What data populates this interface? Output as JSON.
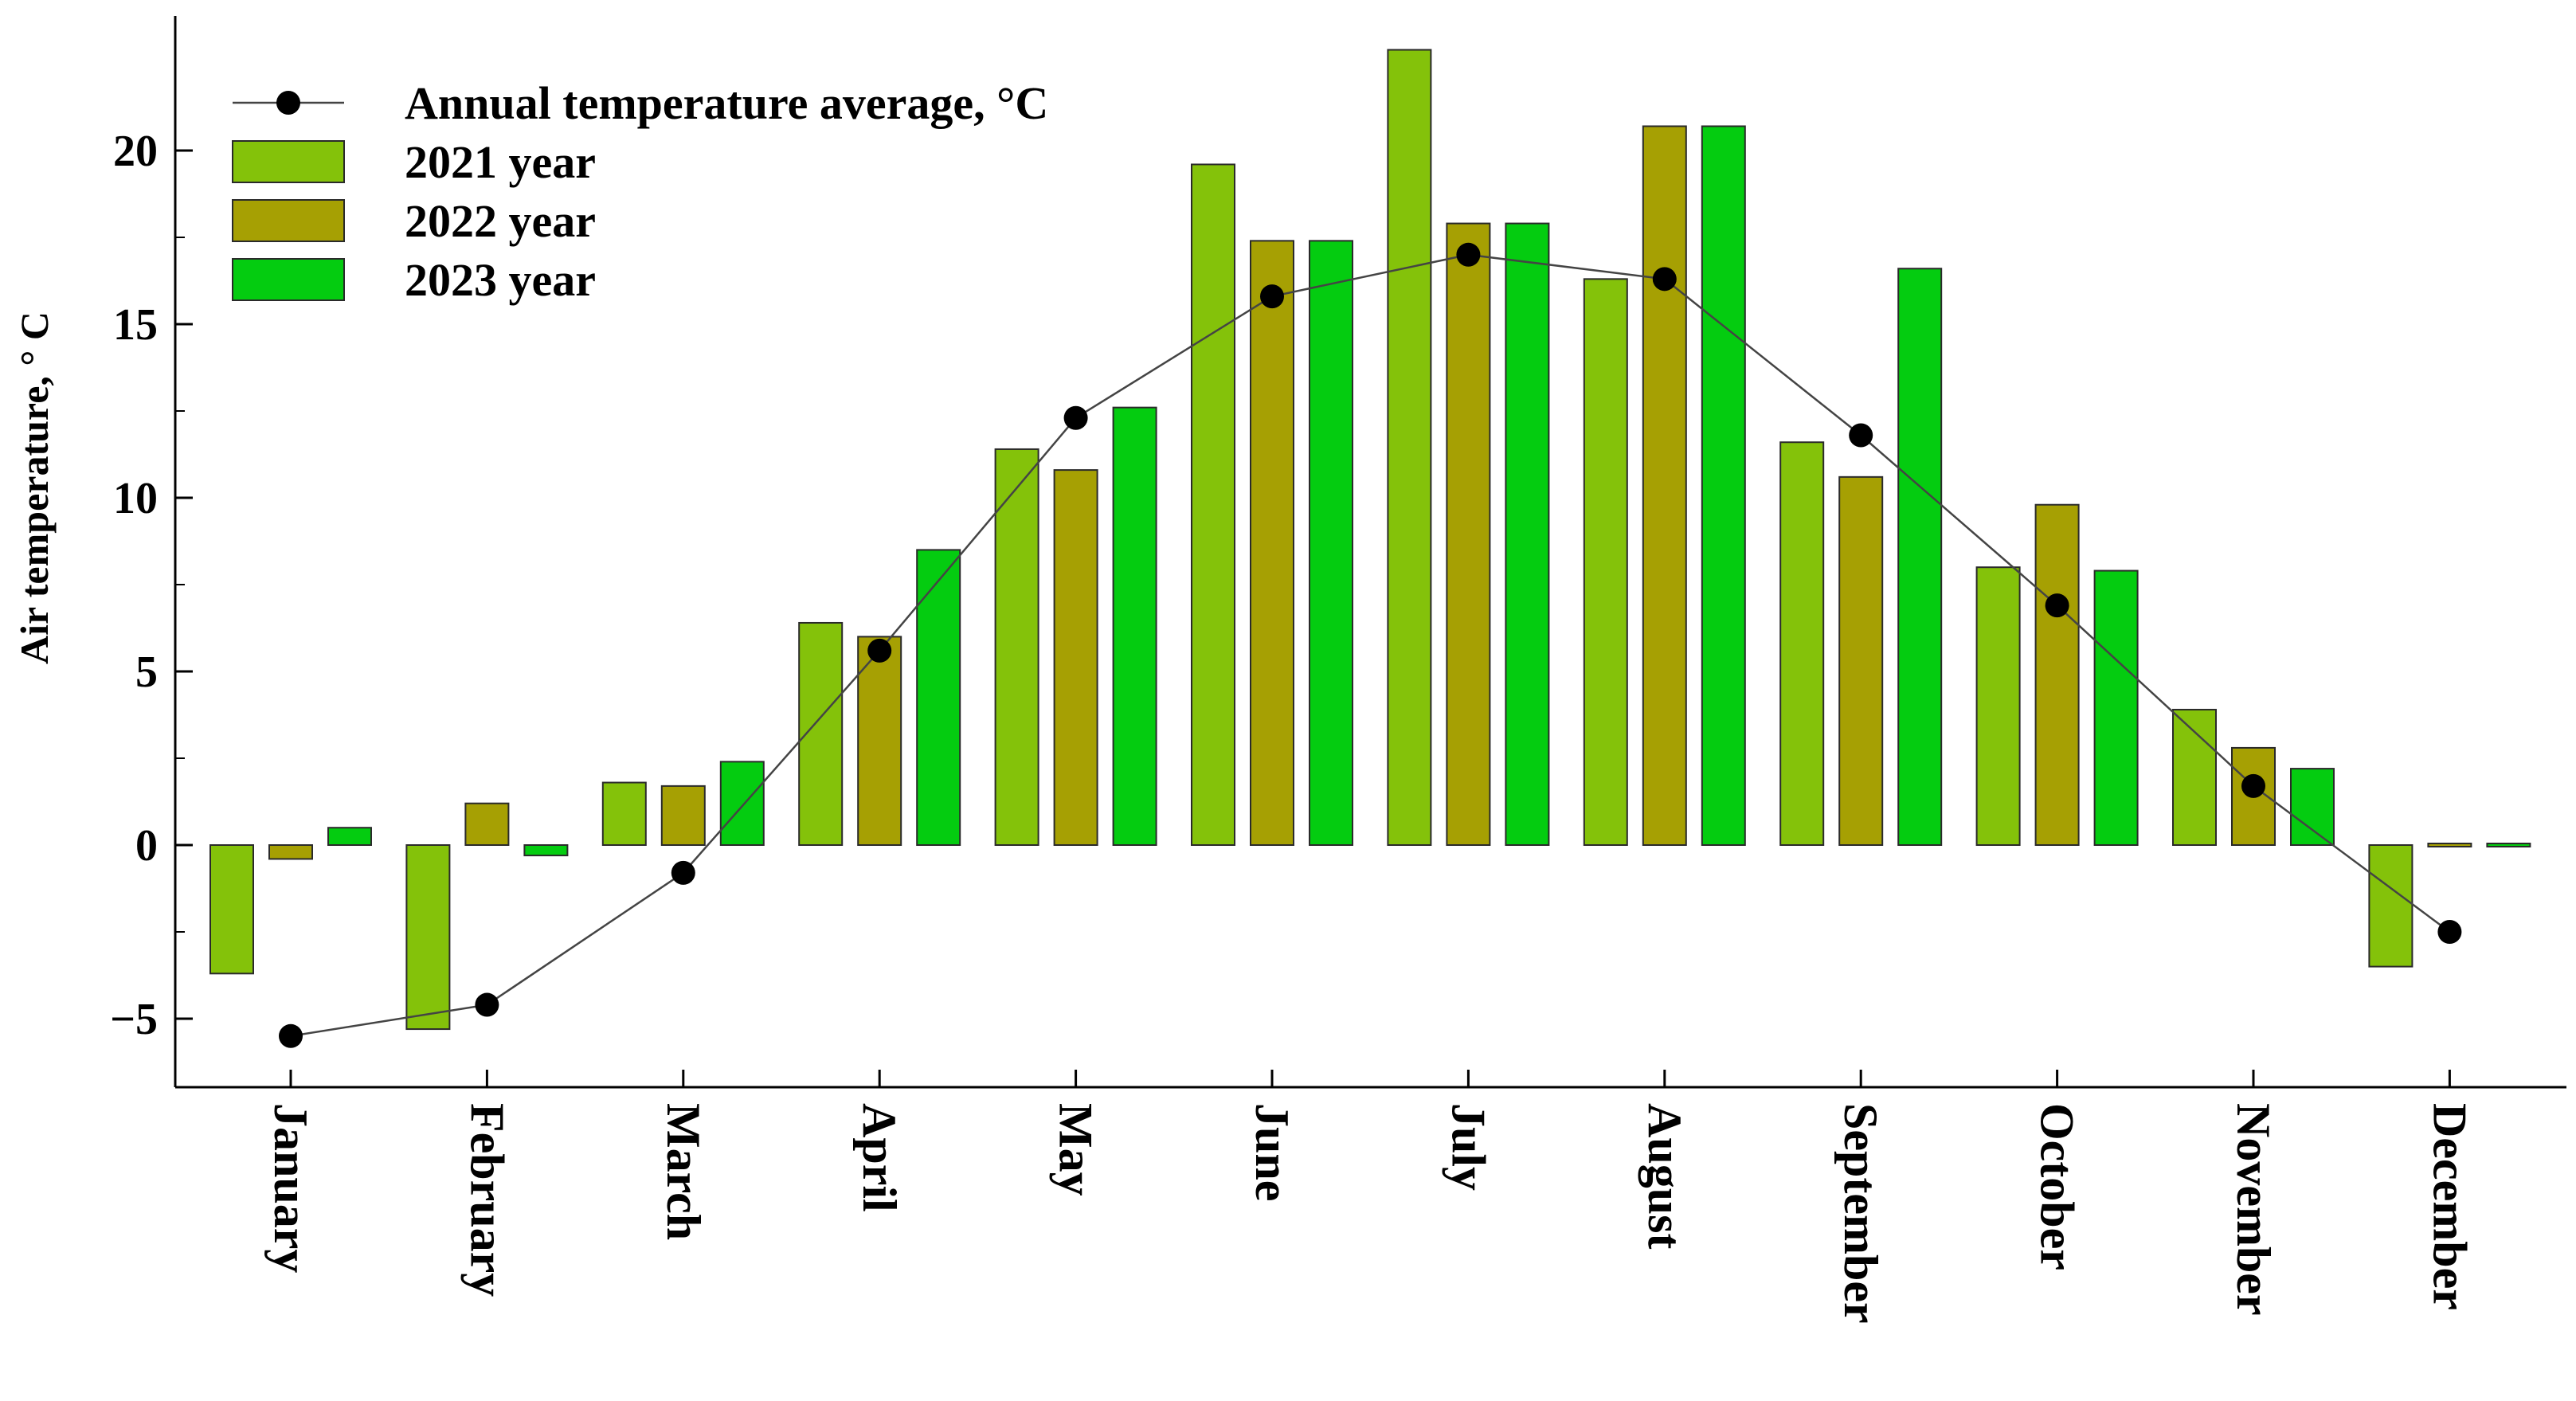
{
  "chart_data": {
    "type": "bar",
    "title": "",
    "xlabel": "",
    "ylabel": "Air temperature, ° C",
    "ylim": [
      -7,
      24
    ],
    "yticks": [
      -5,
      0,
      5,
      10,
      15,
      20
    ],
    "yticks_labels": [
      "−5",
      "0",
      "5",
      "10",
      "15",
      "20"
    ],
    "grid": false,
    "legend_position": "top-left",
    "categories": [
      "January",
      "February",
      "March",
      "April",
      "May",
      "June",
      "July",
      "August",
      "September",
      "October",
      "November",
      "December"
    ],
    "series": [
      {
        "name": "2021 year",
        "kind": "bar",
        "color": "#84C20A",
        "values": [
          -3.7,
          -5.3,
          1.8,
          6.4,
          11.4,
          19.6,
          22.9,
          16.3,
          11.6,
          8.0,
          3.9,
          -3.5
        ]
      },
      {
        "name": "2022 year",
        "kind": "bar",
        "color": "#A6A003",
        "values": [
          -0.4,
          1.2,
          1.7,
          6.0,
          10.8,
          17.4,
          17.9,
          20.7,
          10.6,
          9.8,
          2.8,
          0.05
        ]
      },
      {
        "name": "2023 year",
        "kind": "bar",
        "color": "#04CC10",
        "values": [
          0.5,
          -0.3,
          2.4,
          8.5,
          12.6,
          17.4,
          17.9,
          20.7,
          16.6,
          7.9,
          2.2,
          0.05
        ]
      },
      {
        "name": "Annual temperature average, °C",
        "kind": "line",
        "color": "#000000",
        "values": [
          -5.5,
          -4.6,
          -0.8,
          5.6,
          12.3,
          15.8,
          17.0,
          16.3,
          11.8,
          6.9,
          1.7,
          -2.5
        ]
      }
    ],
    "legend": [
      "Annual temperature average, °C",
      "2021 year",
      "2022 year",
      "2023 year"
    ]
  }
}
